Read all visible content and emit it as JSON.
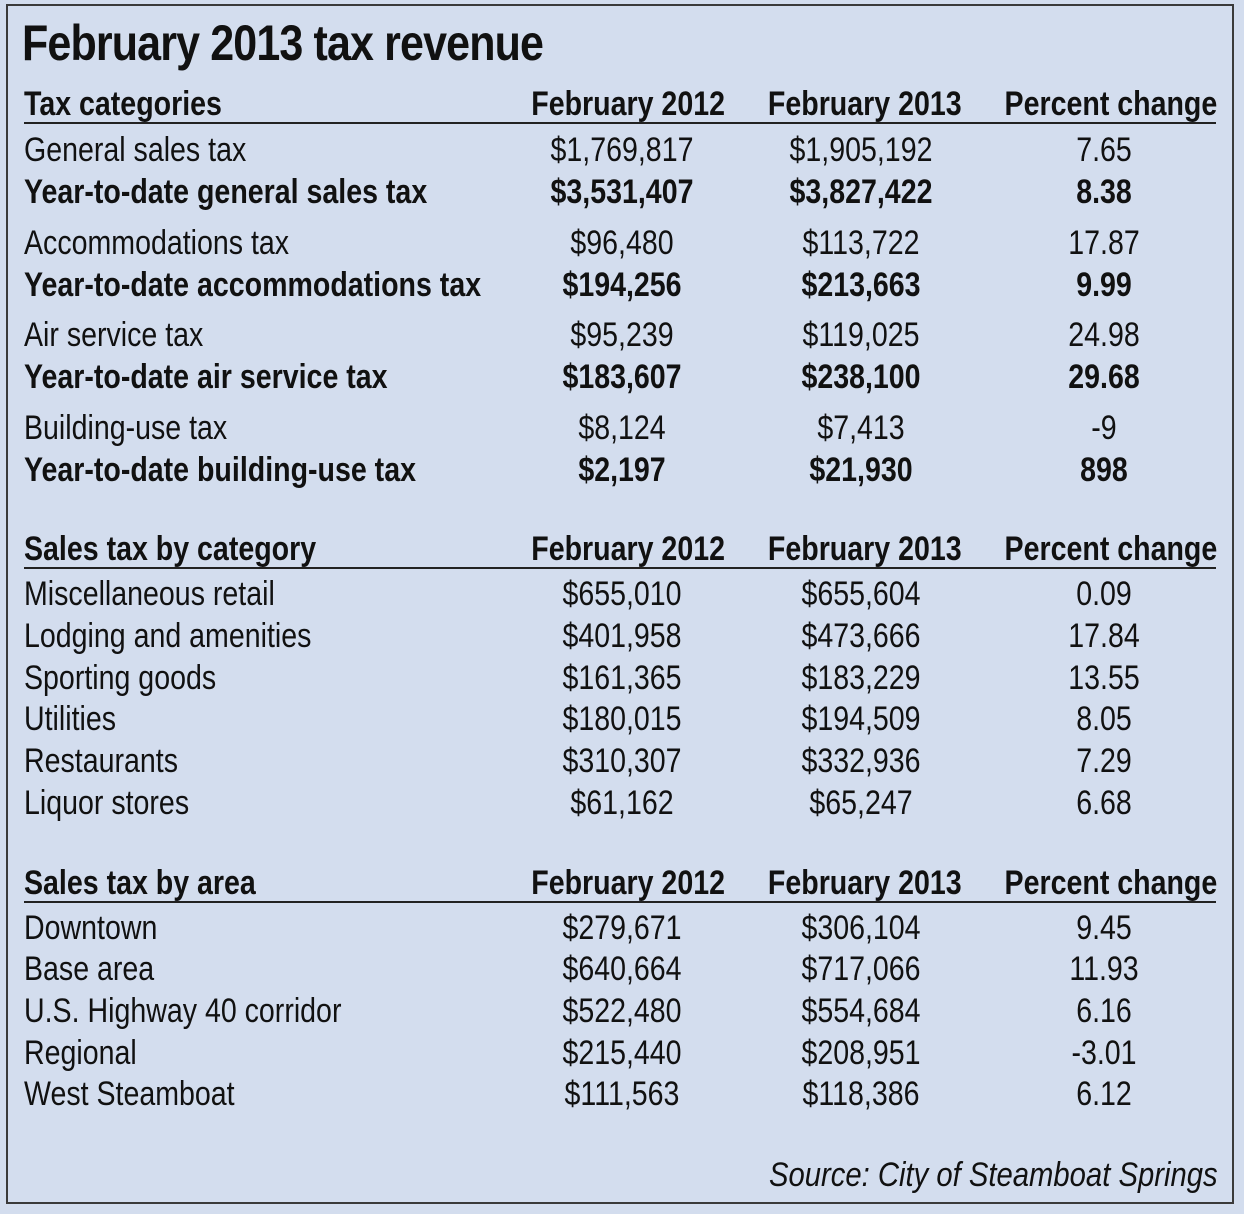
{
  "title": "February 2013 tax revenue",
  "sections": [
    {
      "header": [
        "Tax categories",
        "February 2012",
        "February 2013",
        "Percent change"
      ],
      "rows": [
        {
          "label": "General sales tax",
          "feb2012": "$1,769,817",
          "feb2013": "$1,905,192",
          "change": "7.65",
          "bold": false
        },
        {
          "label": "Year-to-date general sales tax",
          "feb2012": "$3,531,407",
          "feb2013": "$3,827,422",
          "change": "8.38",
          "bold": true
        },
        {
          "label": "Accommodations tax",
          "feb2012": "$96,480",
          "feb2013": "$113,722",
          "change": "17.87",
          "bold": false
        },
        {
          "label": "Year-to-date accommodations tax",
          "feb2012": "$194,256",
          "feb2013": "$213,663",
          "change": "9.99",
          "bold": true
        },
        {
          "label": "Air service tax",
          "feb2012": "$95,239",
          "feb2013": "$119,025",
          "change": "24.98",
          "bold": false
        },
        {
          "label": "Year-to-date air service tax",
          "feb2012": "$183,607",
          "feb2013": "$238,100",
          "change": "29.68",
          "bold": true
        },
        {
          "label": "Building-use tax",
          "feb2012": "$8,124",
          "feb2013": "$7,413",
          "change": "-9",
          "bold": false
        },
        {
          "label": "Year-to-date building-use tax",
          "feb2012": "$2,197",
          "feb2013": "$21,930",
          "change": "898",
          "bold": true
        }
      ]
    },
    {
      "header": [
        "Sales tax by category",
        "February 2012",
        "February 2013",
        "Percent change"
      ],
      "rows": [
        {
          "label": "Miscellaneous retail",
          "feb2012": "$655,010",
          "feb2013": "$655,604",
          "change": "0.09",
          "bold": false
        },
        {
          "label": "Lodging and amenities",
          "feb2012": "$401,958",
          "feb2013": "$473,666",
          "change": "17.84",
          "bold": false
        },
        {
          "label": "Sporting goods",
          "feb2012": "$161,365",
          "feb2013": "$183,229",
          "change": "13.55",
          "bold": false
        },
        {
          "label": "Utilities",
          "feb2012": "$180,015",
          "feb2013": "$194,509",
          "change": "8.05",
          "bold": false
        },
        {
          "label": "Restaurants",
          "feb2012": "$310,307",
          "feb2013": "$332,936",
          "change": "7.29",
          "bold": false
        },
        {
          "label": "Liquor stores",
          "feb2012": "$61,162",
          "feb2013": "$65,247",
          "change": "6.68",
          "bold": false
        }
      ]
    },
    {
      "header": [
        "Sales tax by area",
        "February 2012",
        "February 2013",
        "Percent change"
      ],
      "rows": [
        {
          "label": "Downtown",
          "feb2012": "$279,671",
          "feb2013": "$306,104",
          "change": "9.45",
          "bold": false
        },
        {
          "label": "Base area",
          "feb2012": "$640,664",
          "feb2013": "$717,066",
          "change": "11.93",
          "bold": false
        },
        {
          "label": "U.S. Highway 40 corridor",
          "feb2012": "$522,480",
          "feb2013": "$554,684",
          "change": "6.16",
          "bold": false
        },
        {
          "label": "Regional",
          "feb2012": "$215,440",
          "feb2013": "$208,951",
          "change": "-3.01",
          "bold": false
        },
        {
          "label": "West Steamboat",
          "feb2012": "$111,563",
          "feb2013": "$118,386",
          "change": "6.12",
          "bold": false
        }
      ]
    }
  ],
  "source": "Source: City of Steamboat Springs"
}
